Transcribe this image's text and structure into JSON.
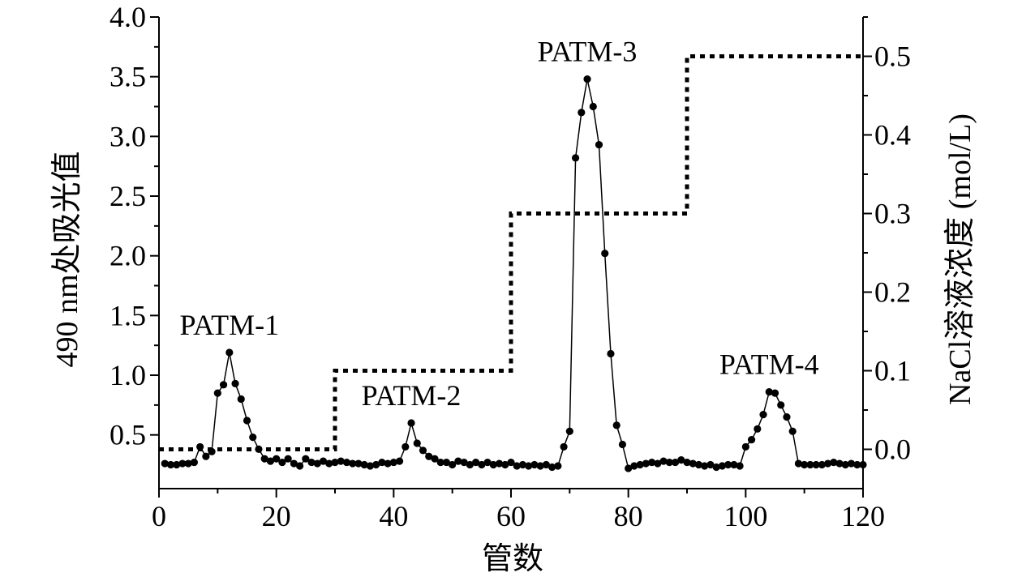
{
  "chart_data": {
    "type": "line",
    "title": "",
    "xlabel": "管数",
    "ylabel_left": "490 nm处吸光值",
    "ylabel_right": "NaCl溶液浓度 (mol/L)",
    "xlim": [
      0,
      120
    ],
    "ylim_left": [
      0.05,
      4.0
    ],
    "ylim_right": [
      -0.05,
      0.55
    ],
    "x_ticks": [
      "0",
      "20",
      "40",
      "60",
      "80",
      "100",
      "120"
    ],
    "y_left_ticks": [
      "0.5",
      "1.0",
      "1.5",
      "2.0",
      "2.5",
      "3.0",
      "3.5",
      "4.0"
    ],
    "y_right_ticks": [
      "0.0",
      "0.1",
      "0.2",
      "0.3",
      "0.4",
      "0.5"
    ],
    "grid": false,
    "series": [
      {
        "axis": "left",
        "style": "line+markers",
        "x": [
          1,
          2,
          3,
          4,
          5,
          6,
          7,
          8,
          9,
          10,
          11,
          12,
          13,
          14,
          15,
          16,
          17,
          18,
          19,
          20,
          21,
          22,
          23,
          24,
          25,
          26,
          27,
          28,
          29,
          30,
          31,
          32,
          33,
          34,
          35,
          36,
          37,
          38,
          39,
          40,
          41,
          42,
          43,
          44,
          45,
          46,
          47,
          48,
          49,
          50,
          51,
          52,
          53,
          54,
          55,
          56,
          57,
          58,
          59,
          60,
          61,
          62,
          63,
          64,
          65,
          66,
          67,
          68,
          69,
          70,
          71,
          72,
          73,
          74,
          75,
          76,
          77,
          78,
          79,
          80,
          81,
          82,
          83,
          84,
          85,
          86,
          87,
          88,
          89,
          90,
          91,
          92,
          93,
          94,
          95,
          96,
          97,
          98,
          99,
          100,
          101,
          102,
          103,
          104,
          105,
          106,
          107,
          108,
          109,
          110,
          111,
          112,
          113,
          114,
          115,
          116,
          117,
          118,
          119,
          120
        ],
        "values": [
          0.26,
          0.25,
          0.25,
          0.26,
          0.26,
          0.27,
          0.4,
          0.32,
          0.36,
          0.85,
          0.92,
          1.19,
          0.93,
          0.8,
          0.62,
          0.48,
          0.38,
          0.3,
          0.28,
          0.3,
          0.27,
          0.3,
          0.26,
          0.24,
          0.3,
          0.27,
          0.26,
          0.28,
          0.26,
          0.27,
          0.28,
          0.27,
          0.26,
          0.26,
          0.25,
          0.24,
          0.25,
          0.27,
          0.26,
          0.27,
          0.28,
          0.4,
          0.6,
          0.43,
          0.37,
          0.32,
          0.3,
          0.27,
          0.27,
          0.25,
          0.28,
          0.27,
          0.25,
          0.27,
          0.25,
          0.27,
          0.25,
          0.26,
          0.25,
          0.27,
          0.24,
          0.25,
          0.24,
          0.25,
          0.24,
          0.25,
          0.23,
          0.24,
          0.4,
          0.53,
          2.82,
          3.2,
          3.48,
          3.25,
          2.93,
          2.02,
          1.18,
          0.58,
          0.42,
          0.22,
          0.24,
          0.25,
          0.26,
          0.27,
          0.26,
          0.28,
          0.27,
          0.27,
          0.29,
          0.27,
          0.26,
          0.25,
          0.24,
          0.25,
          0.23,
          0.24,
          0.25,
          0.25,
          0.24,
          0.4,
          0.46,
          0.55,
          0.67,
          0.86,
          0.85,
          0.75,
          0.65,
          0.53,
          0.26,
          0.25,
          0.25,
          0.25,
          0.25,
          0.26,
          0.27,
          0.26,
          0.25,
          0.26,
          0.25,
          0.25
        ]
      },
      {
        "axis": "right",
        "style": "dotted-step",
        "x": [
          0,
          30,
          30,
          60,
          60,
          90,
          90,
          120
        ],
        "values": [
          0.0,
          0.0,
          0.1,
          0.1,
          0.3,
          0.3,
          0.5,
          0.5
        ]
      }
    ],
    "annotations": [
      {
        "text": "PATM-1",
        "x": 12,
        "y": 1.19
      },
      {
        "text": "PATM-2",
        "x": 43,
        "y": 0.6
      },
      {
        "text": "PATM-3",
        "x": 73,
        "y": 3.48
      },
      {
        "text": "PATM-4",
        "x": 104,
        "y": 0.86
      }
    ]
  }
}
